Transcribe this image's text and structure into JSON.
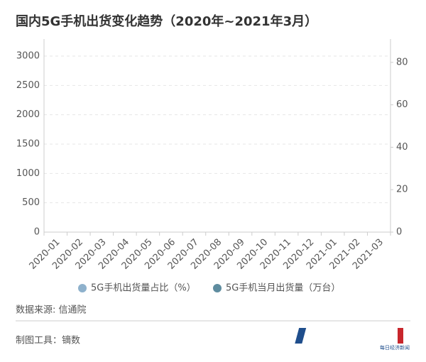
{
  "chart_data": {
    "type": "bar",
    "title": "国内5G手机出货变化趋势（2020年~2021年3月）",
    "categories": [
      "2020-01",
      "2020-02",
      "2020-03",
      "2020-04",
      "2020-05",
      "2020-06",
      "2020-07",
      "2020-08",
      "2020-09",
      "2020-10",
      "2020-11",
      "2020-12",
      "2021-01",
      "2021-02",
      "2021-03"
    ],
    "series": [
      {
        "name": "5G手机出货量占比（%）",
        "color": "#8eb1cc",
        "axis": "y2",
        "values": [
          null,
          null,
          null,
          null,
          null,
          null,
          null,
          null,
          null,
          null,
          null,
          null,
          null,
          null,
          null
        ]
      },
      {
        "name": "5G手机当月出货量（万台）",
        "color": "#5e8c9f",
        "values": [
          null,
          null,
          null,
          null,
          null,
          null,
          null,
          null,
          null,
          null,
          null,
          null,
          null,
          null,
          null
        ]
      }
    ],
    "ylim": [
      0,
      3290
    ],
    "yticks": [
      0,
      500,
      1000,
      1500,
      2000,
      2500,
      3000
    ],
    "y2lim": [
      0,
      91
    ],
    "y2ticks": [
      0,
      20,
      40,
      60,
      80
    ],
    "grid": true
  },
  "source": "数据来源: 信通院",
  "tool": "制图工具：镝数",
  "logo": "每日经济新闻"
}
